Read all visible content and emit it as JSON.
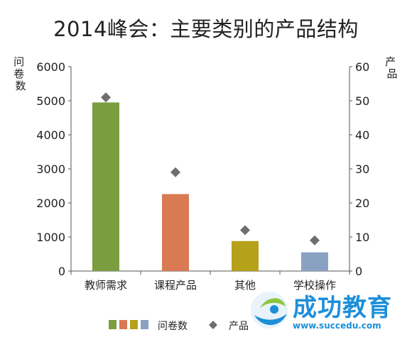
{
  "chart_data": {
    "type": "bar",
    "title": "2014峰会：主要类别的产品结构",
    "categories": [
      "教师需求",
      "课程产品",
      "其他",
      "学校操作"
    ],
    "series": [
      {
        "name": "问卷数",
        "kind": "bar",
        "axis": "left",
        "values": [
          4950,
          2260,
          880,
          550
        ],
        "colors": [
          "#7a9e3f",
          "#d97a55",
          "#b5a11a",
          "#8aa2c2"
        ]
      },
      {
        "name": "产品",
        "kind": "scatter",
        "axis": "right",
        "values": [
          51,
          29,
          12,
          9
        ],
        "color": "#6e6e6e"
      }
    ],
    "ylabel": "问卷数",
    "y2label": "产品",
    "ylim": [
      0,
      6000
    ],
    "y2lim": [
      0,
      60
    ],
    "yticks": [
      "0",
      "1000",
      "2000",
      "3000",
      "4000",
      "5000",
      "6000"
    ],
    "y2ticks": [
      "0",
      "10",
      "20",
      "30",
      "40",
      "50",
      "60"
    ],
    "legend_position": "bottom",
    "grid": false
  },
  "watermark": {
    "name": "成功教育",
    "url": "www.succedu.com"
  }
}
